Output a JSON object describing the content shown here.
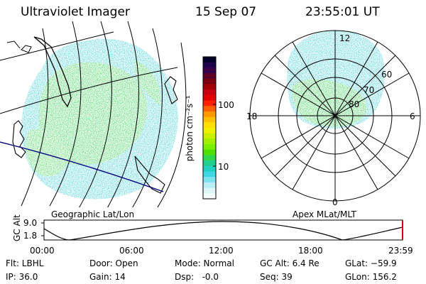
{
  "header": {
    "instrument": "Ultraviolet Imager",
    "date": "15 Sep 07",
    "time": "23:55:01 UT"
  },
  "colorbar": {
    "unit_label": "photon cm⁻²s⁻¹",
    "tick_labels": [
      "100",
      "10"
    ],
    "colors_top_to_bottom": [
      "#000028",
      "#20004a",
      "#3a004a",
      "#5a0028",
      "#7a0010",
      "#a00000",
      "#c80010",
      "#e00000",
      "#ff2000",
      "#ff6000",
      "#ff9800",
      "#ffc000",
      "#ffe000",
      "#f0f000",
      "#c8f000",
      "#a0f000",
      "#78f000",
      "#50e000",
      "#30d850",
      "#20d090",
      "#20d0c0",
      "#40d8e0",
      "#80e4f0",
      "#b8eef4",
      "#ddf6f8",
      "#f4fbfb"
    ]
  },
  "left_panel": {
    "label": "Geographic Lat/Lon"
  },
  "right_panel": {
    "label": "Apex MLat/MLT",
    "ring_labels": [
      "60",
      "70",
      "80"
    ],
    "mlt_labels": {
      "top": "12",
      "left": "18",
      "right": "6",
      "bottom": "0"
    }
  },
  "altitude_plot": {
    "y_axis_label": "GC Alt",
    "y_ticks": [
      "9.0",
      "1.8"
    ],
    "x_ticks": [
      "00:00",
      "06:00",
      "12:00",
      "18:00",
      "23:59"
    ]
  },
  "info": {
    "flt": "Flt: LBHL",
    "ip": "IP: 36.0",
    "door": "Door: Open",
    "gain": "Gain: 14",
    "mode": "Mode: Normal",
    "dsp": "Dsp:   -0.0",
    "gc_alt": "GC Alt: 6.4 Re",
    "seq": "Seq: 39",
    "glat": "GLat: −59.9",
    "glon": "GLon: 156.2"
  }
}
